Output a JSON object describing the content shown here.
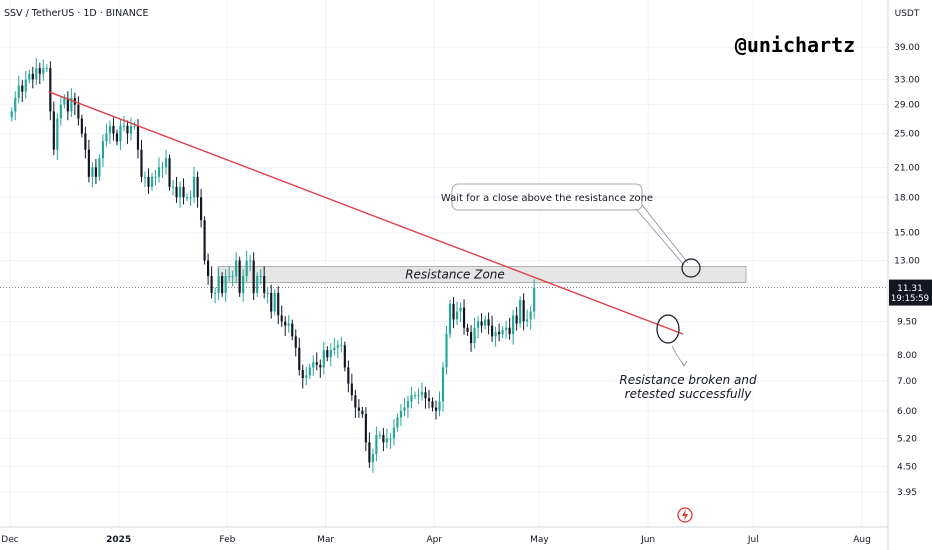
{
  "header": {
    "symbol_title": "SSV / TetherUS · 1D · BINANCE",
    "currency": "USDT"
  },
  "watermark": "@unichartz",
  "current_price": {
    "price": "11.31",
    "countdown": "19:15:59",
    "tag_color": "#131722"
  },
  "colors": {
    "up": "#26a69a",
    "down": "#131722",
    "trendline": "#e0404a",
    "zone_fill": "#e5e5e5",
    "zone_border": "#9e9e9e",
    "grid": "#f0f3fa",
    "axis_border": "#d1d4dc",
    "event_icon": "#e53935"
  },
  "chart_data": {
    "type": "candlestick",
    "title": "SSV / TetherUS · 1D · BINANCE",
    "y_scale": "log",
    "ylim": [
      3.6,
      46
    ],
    "y_ticks": [
      "39.00",
      "33.00",
      "29.00",
      "25.00",
      "21.00",
      "18.00",
      "15.00",
      "13.00",
      "11.31",
      "9.50",
      "8.00",
      "7.00",
      "6.00",
      "5.20",
      "4.50",
      "3.95"
    ],
    "x_tick_labels": [
      "Dec",
      "2025",
      "Feb",
      "Mar",
      "Apr",
      "May",
      "Jun",
      "Jul",
      "Aug"
    ],
    "x_tick_dates": [
      "2024-12-01",
      "2025-01-01",
      "2025-02-01",
      "2025-03-01",
      "2025-04-01",
      "2025-05-01",
      "2025-06-01",
      "2025-07-01",
      "2025-08-01"
    ],
    "candles_start_date": "2024-12-01",
    "close_series": [
      28,
      30,
      32,
      31,
      33,
      34,
      33,
      35,
      34,
      35,
      35,
      28,
      23,
      27,
      29,
      30,
      28,
      30,
      29,
      27,
      25,
      23,
      20,
      21,
      20,
      22,
      24,
      25,
      26,
      25,
      24,
      26,
      26,
      25,
      26,
      26,
      23,
      20,
      20,
      19,
      20,
      20,
      21,
      21,
      22,
      19,
      19,
      18,
      19,
      18,
      18,
      18,
      20,
      18,
      16,
      13,
      12,
      11,
      11,
      12,
      11,
      12,
      12,
      12,
      13,
      11,
      12,
      13,
      13,
      11,
      12,
      12,
      11,
      11,
      10,
      11,
      9.8,
      9.5,
      9.3,
      9.4,
      8.8,
      8.3,
      7.4,
      7.1,
      7.2,
      7.5,
      7.7,
      7.6,
      7.5,
      8.2,
      7.9,
      8.2,
      8.3,
      8.4,
      8.4,
      7.5,
      6.9,
      6.5,
      6.1,
      6.0,
      5.9,
      5.1,
      4.6,
      4.8,
      5.3,
      5.3,
      5.1,
      5.2,
      5.2,
      5.5,
      5.8,
      6.0,
      6.1,
      6.3,
      6.5,
      6.5,
      6.5,
      6.6,
      6.4,
      6.3,
      6.1,
      6.0,
      6.3,
      7.5,
      8.9,
      10.4,
      9.6,
      10.0,
      10.2,
      9.2,
      9.0,
      8.5,
      9.2,
      9.5,
      9.3,
      9.6,
      9.3,
      8.8,
      9.0,
      8.9,
      9.1,
      9.2,
      8.9,
      9.8,
      9.4,
      10.6,
      9.5,
      9.6,
      10.0,
      11.3
    ],
    "annotations": [
      {
        "text": "Resistance Zone",
        "type": "zone",
        "y_range": [
          11.6,
          12.6
        ]
      },
      {
        "text": "Wait for a close above the resistance zone",
        "type": "callout"
      },
      {
        "text": "Resistance broken and retested successfully",
        "type": "note"
      }
    ],
    "trendline": {
      "from": [
        "2024-12-12",
        31.0
      ],
      "to": [
        "2025-06-11",
        8.9
      ]
    },
    "current_price": 11.31
  },
  "annotations": {
    "zone_label": "Resistance Zone",
    "callout": "Wait for a close above the resistance zone",
    "note_line1": "Resistance broken and",
    "note_line2": "retested successfully"
  }
}
